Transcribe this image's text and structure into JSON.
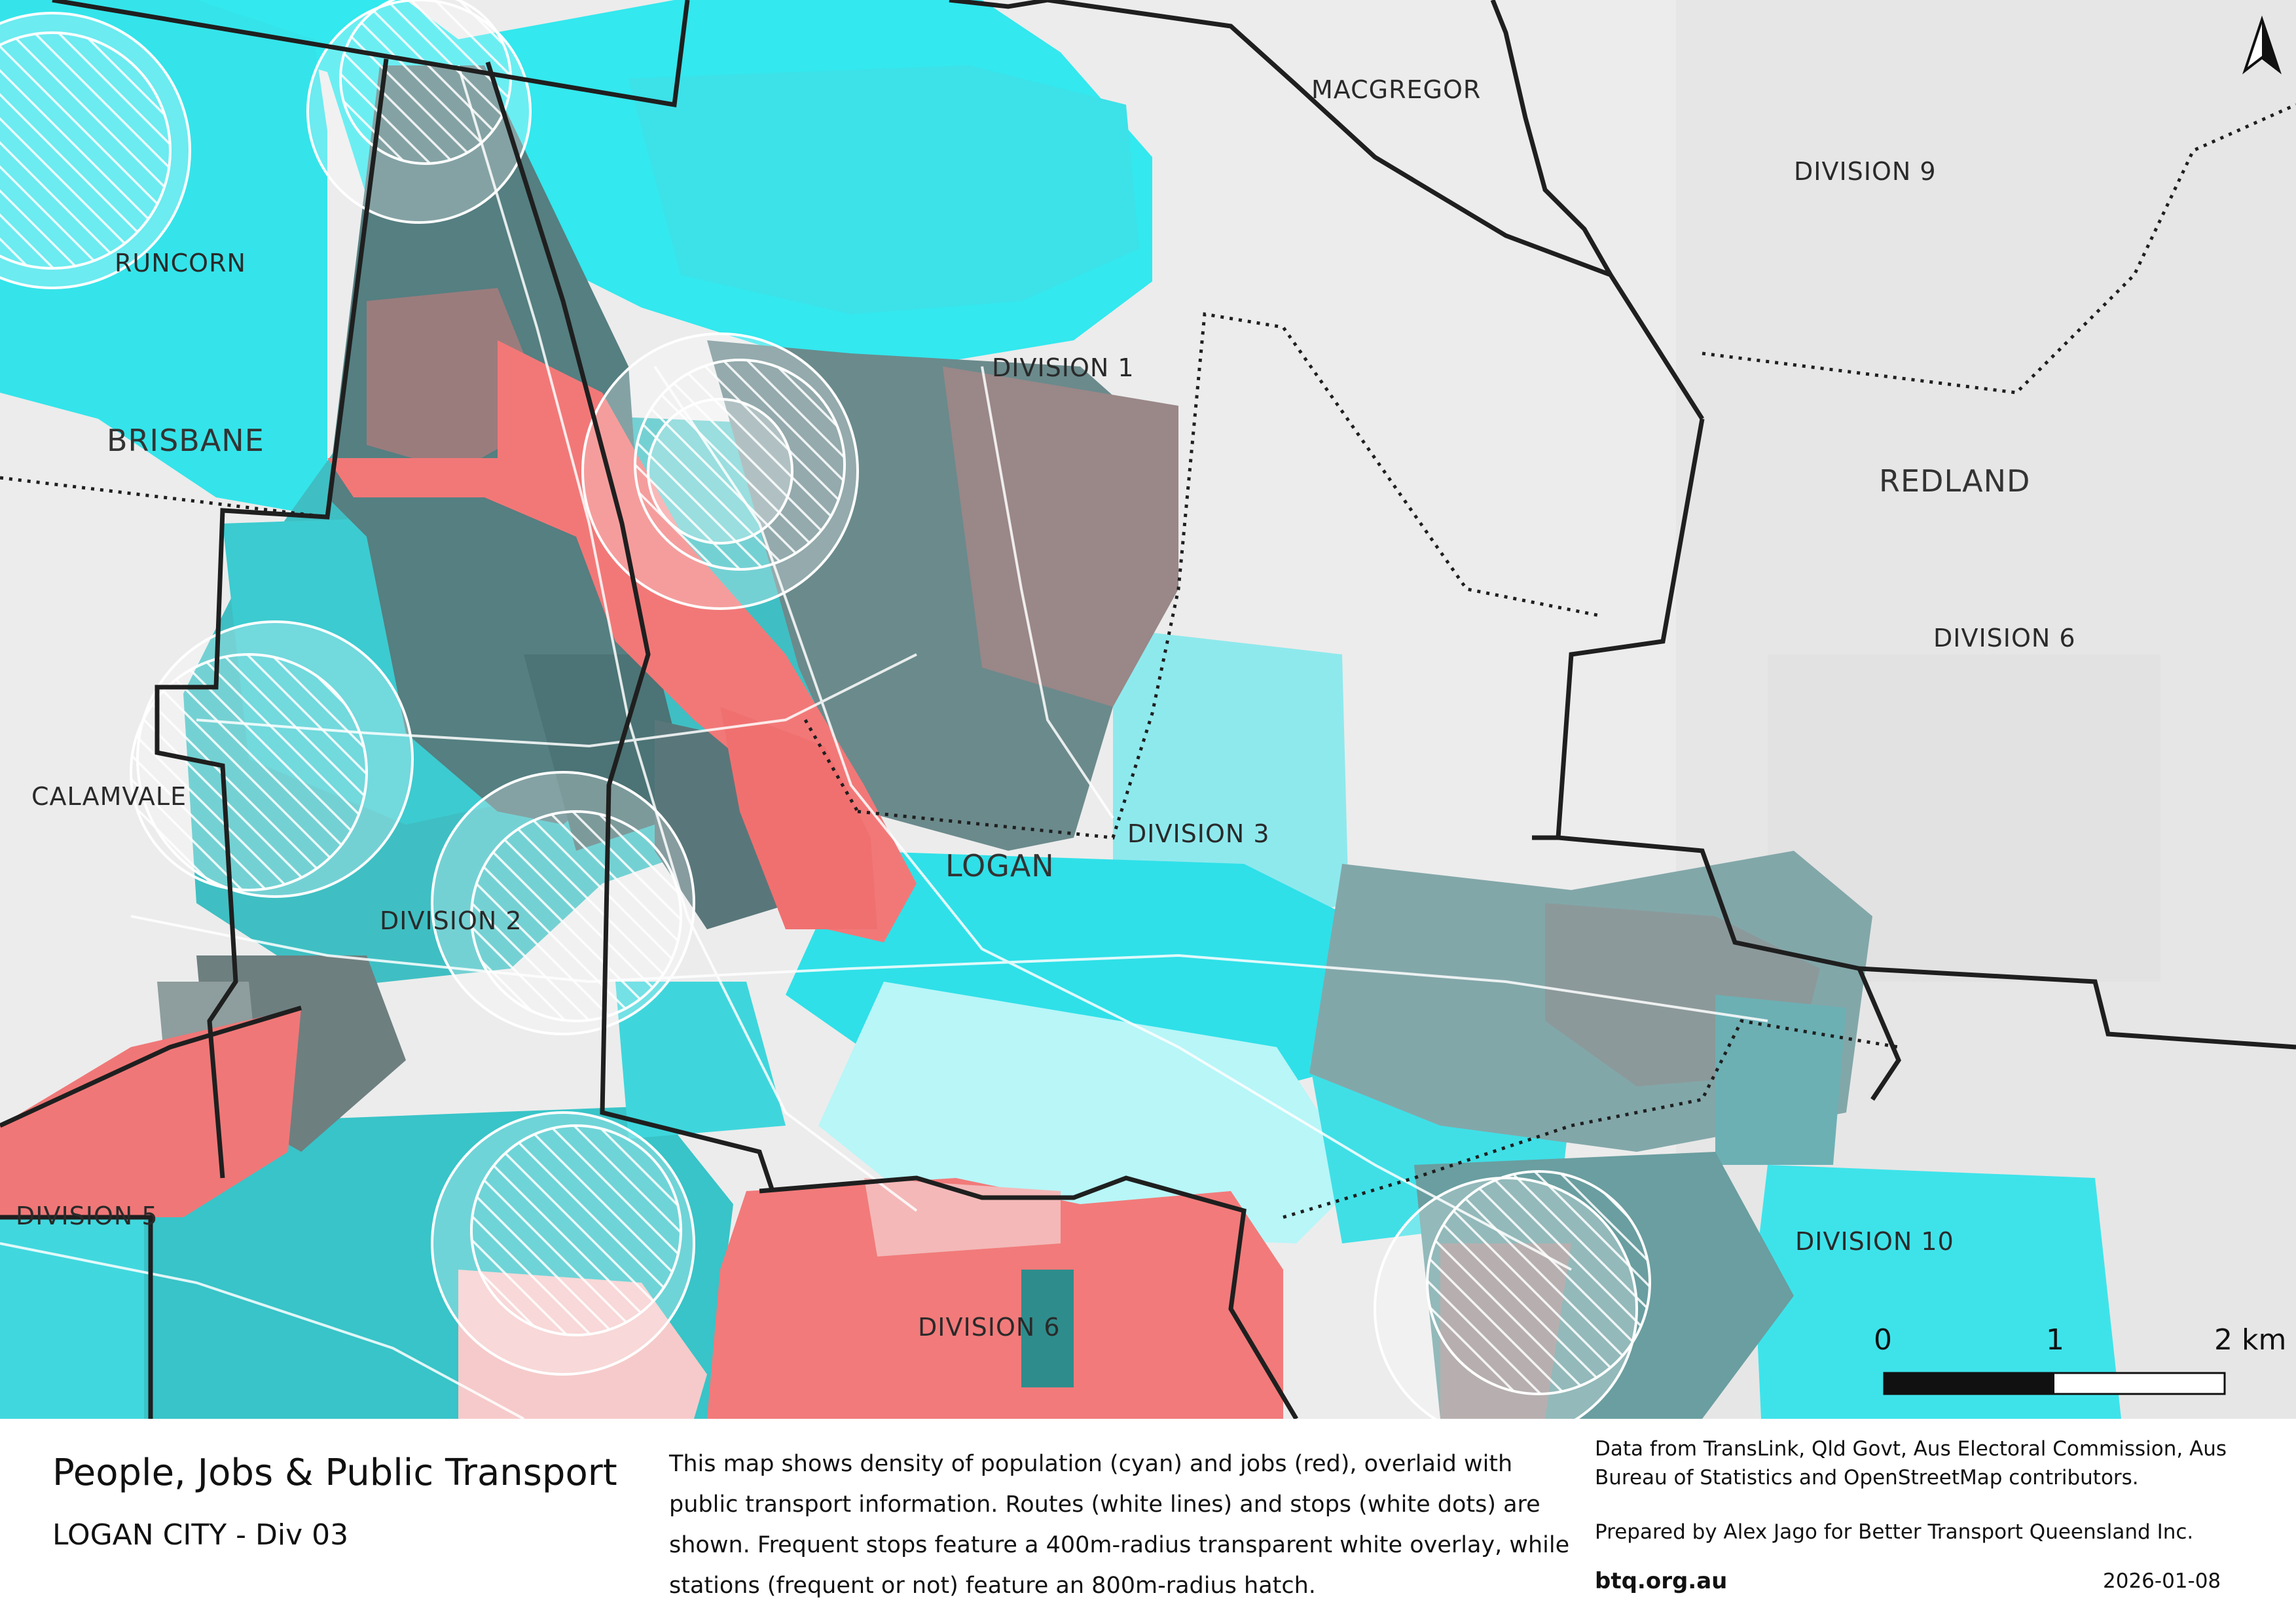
{
  "map": {
    "places": {
      "macgregor": "MACGREGOR",
      "division9": "DIVISION 9",
      "runcorn": "RUNCORN",
      "division1": "DIVISION 1",
      "brisbane": "BRISBANE",
      "redland": "REDLAND",
      "division6_top": "DIVISION 6",
      "calamvale": "CALAMVALE",
      "division3": "DIVISION 3",
      "logan": "LOGAN",
      "division2": "DIVISION 2",
      "division5": "DIVISION 5",
      "division10": "DIVISION 10",
      "division6_bottom": "DIVISION 6"
    },
    "scale_bar": {
      "labels": [
        "0",
        "1",
        "2 km"
      ]
    },
    "north_arrow": "north-arrow-icon",
    "colors": {
      "population": "#2fe6ec",
      "jobs": "#f27a7a",
      "mixed": "#5d8f91",
      "background": "#ececec"
    }
  },
  "footer": {
    "title": "People, Jobs & Public Transport",
    "subtitle": "LOGAN CITY - Div 03",
    "description": "This map shows density of population (cyan) and jobs (red), overlaid with public transport information. Routes (white lines) and stops (white dots) are shown. Frequent stops feature a 400m-radius transparent white overlay, while stations (frequent or not) feature an 800m-radius hatch.",
    "credits": "Data from TransLink,  Qld Govt,  Aus Electoral Commission, Aus Bureau of Statistics and OpenStreetMap contributors.",
    "prepared_by": "Prepared by Alex Jago for Better Transport Queensland Inc.",
    "website": "btq.org.au",
    "date": "2026-01-08"
  }
}
